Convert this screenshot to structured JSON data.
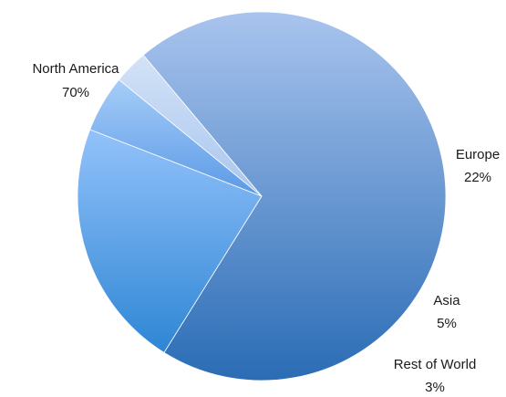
{
  "chart_data": {
    "type": "pie",
    "title": "",
    "slices": [
      {
        "label": "North America",
        "value": 70,
        "value_label": "70%",
        "color": "#5b8fd6"
      },
      {
        "label": "Europe",
        "value": 22,
        "value_label": "22%",
        "color": "#4a90e2"
      },
      {
        "label": "Asia",
        "value": 5,
        "value_label": "5%",
        "color": "#7fb0ee"
      },
      {
        "label": "Rest of World",
        "value": 3,
        "value_label": "3%",
        "color": "#b4cdf0"
      }
    ],
    "start_angle_deg": 320,
    "direction": "clockwise",
    "legend": "none"
  }
}
